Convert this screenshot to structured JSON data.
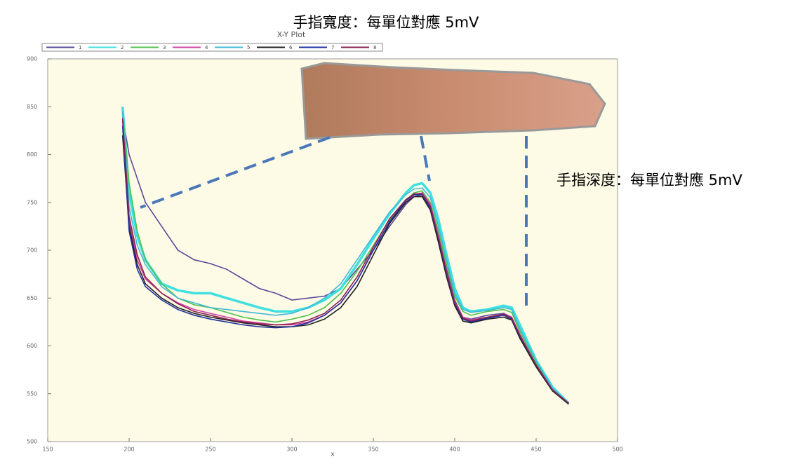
{
  "chart_data": {
    "type": "line",
    "title": "X-Y Plot",
    "x_label": "x",
    "annotations": [
      "手指寬度：每單位對應 5mV",
      "手指深度：每單位對應 5mV"
    ],
    "x": [
      196,
      200,
      205,
      210,
      220,
      230,
      240,
      250,
      260,
      270,
      280,
      290,
      300,
      310,
      320,
      330,
      340,
      350,
      360,
      370,
      375,
      380,
      385,
      390,
      395,
      400,
      405,
      410,
      420,
      430,
      435,
      440,
      450,
      460,
      470
    ],
    "series": [
      {
        "name": "1",
        "color": "#5a4a9a",
        "values": [
          840,
          800,
          775,
          750,
          725,
          700,
          690,
          686,
          680,
          670,
          660,
          655,
          648,
          650,
          652,
          660,
          680,
          700,
          725,
          748,
          756,
          758,
          745,
          715,
          680,
          648,
          630,
          628,
          632,
          634,
          630,
          610,
          580,
          555,
          540
        ]
      },
      {
        "name": "2",
        "color": "#3ee0e0",
        "values": [
          850,
          760,
          715,
          690,
          665,
          658,
          655,
          655,
          650,
          645,
          640,
          636,
          636,
          640,
          648,
          660,
          685,
          712,
          738,
          760,
          768,
          770,
          760,
          732,
          695,
          660,
          640,
          636,
          638,
          642,
          640,
          622,
          585,
          557,
          540
        ]
      },
      {
        "name": "3",
        "color": "#50c050",
        "values": [
          845,
          770,
          720,
          690,
          665,
          650,
          643,
          640,
          635,
          630,
          627,
          625,
          628,
          632,
          640,
          655,
          678,
          705,
          732,
          752,
          760,
          762,
          750,
          720,
          685,
          652,
          636,
          632,
          636,
          638,
          635,
          615,
          582,
          555,
          540
        ]
      },
      {
        "name": "4",
        "color": "#d040a0",
        "values": [
          835,
          730,
          690,
          670,
          655,
          645,
          638,
          634,
          630,
          626,
          624,
          622,
          622,
          625,
          632,
          645,
          668,
          700,
          730,
          750,
          758,
          760,
          748,
          715,
          678,
          646,
          630,
          627,
          630,
          633,
          630,
          612,
          580,
          555,
          540
        ]
      },
      {
        "name": "5",
        "color": "#40b8d8",
        "values": [
          845,
          745,
          705,
          685,
          662,
          650,
          645,
          640,
          638,
          636,
          634,
          632,
          634,
          640,
          650,
          665,
          690,
          715,
          740,
          758,
          764,
          765,
          755,
          725,
          690,
          655,
          638,
          635,
          637,
          640,
          638,
          618,
          584,
          556,
          540
        ]
      },
      {
        "name": "6",
        "color": "#202020",
        "values": [
          820,
          725,
          685,
          665,
          650,
          640,
          634,
          630,
          627,
          624,
          622,
          620,
          620,
          622,
          628,
          640,
          662,
          695,
          728,
          750,
          756,
          756,
          742,
          708,
          672,
          642,
          626,
          624,
          628,
          630,
          627,
          608,
          578,
          553,
          539
        ]
      },
      {
        "name": "7",
        "color": "#2030a0",
        "values": [
          830,
          720,
          680,
          662,
          648,
          638,
          632,
          628,
          625,
          622,
          620,
          619,
          620,
          624,
          632,
          645,
          668,
          700,
          730,
          752,
          758,
          758,
          744,
          712,
          675,
          644,
          628,
          625,
          629,
          632,
          628,
          610,
          580,
          554,
          540
        ]
      },
      {
        "name": "8",
        "color": "#8a2050",
        "values": [
          838,
          735,
          695,
          672,
          655,
          644,
          636,
          632,
          628,
          625,
          623,
          622,
          623,
          627,
          634,
          648,
          672,
          703,
          733,
          753,
          759,
          759,
          746,
          713,
          677,
          645,
          629,
          626,
          630,
          633,
          629,
          611,
          580,
          554,
          540
        ]
      }
    ],
    "xlim": [
      150,
      500
    ],
    "ylim": [
      500,
      900
    ],
    "xticks": [
      150,
      200,
      250,
      300,
      350,
      400,
      450,
      500
    ],
    "yticks": [
      500,
      550,
      600,
      650,
      700,
      750,
      800,
      850,
      900
    ],
    "legend": "top"
  }
}
